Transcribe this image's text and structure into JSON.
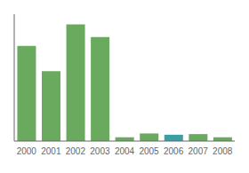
{
  "chart_data": {
    "type": "bar",
    "categories": [
      "2000",
      "2001",
      "2002",
      "2003",
      "2004",
      "2005",
      "2006",
      "2007",
      "2008"
    ],
    "values": [
      75,
      55,
      92,
      82,
      3,
      6,
      5,
      5.5,
      3
    ],
    "colors": [
      "#6aaa5e",
      "#6aaa5e",
      "#6aaa5e",
      "#6aaa5e",
      "#6aaa5e",
      "#6aaa5e",
      "#3a9ea5",
      "#6aaa5e",
      "#6aaa5e"
    ],
    "ylim": [
      0,
      100
    ],
    "grid": false,
    "tick_labels": "x"
  }
}
